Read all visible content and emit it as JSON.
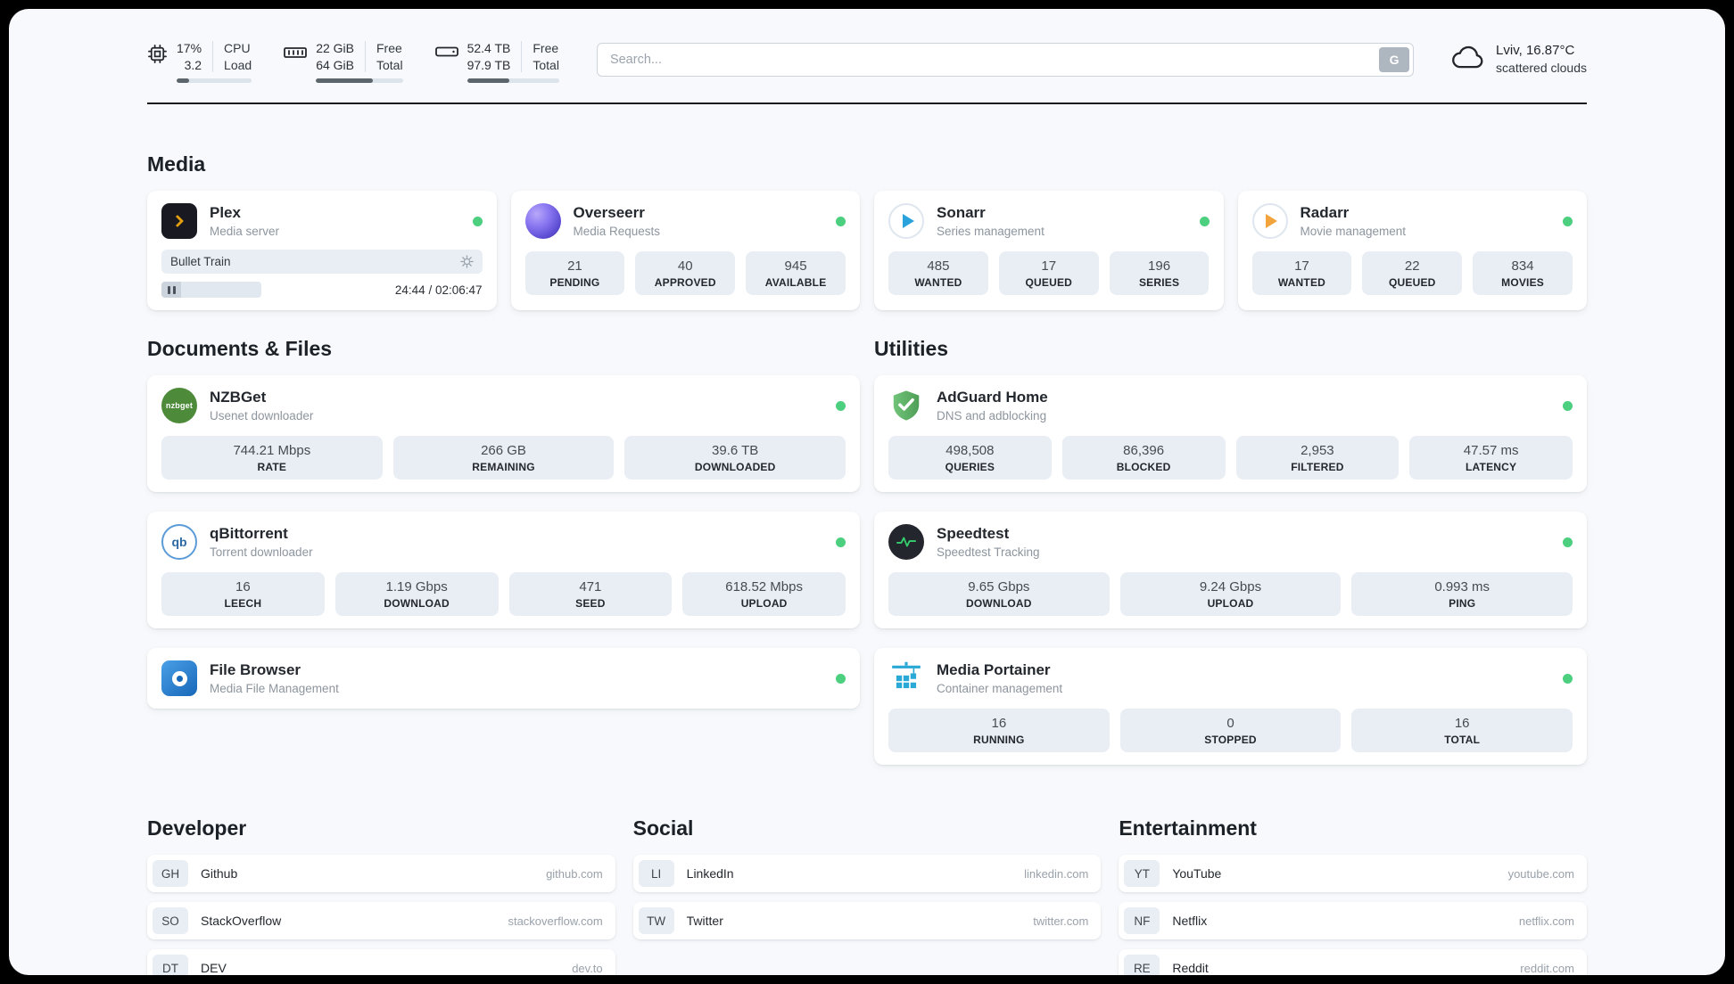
{
  "theme": {
    "status_green": "#4cd07f",
    "plex_accent": "#e5a00d"
  },
  "header": {
    "cpu": {
      "value_top": "17%",
      "value_bottom": "3.2",
      "label_top": "CPU",
      "label_bottom": "Load",
      "bar_percent": "17%"
    },
    "ram": {
      "value_top": "22 GiB",
      "value_bottom": "64 GiB",
      "label_top": "Free",
      "label_bottom": "Total",
      "bar_percent": "66%"
    },
    "disk": {
      "value_top": "52.4 TB",
      "value_bottom": "97.9 TB",
      "label_top": "Free",
      "label_bottom": "Total",
      "bar_percent": "46%"
    },
    "search": {
      "placeholder": "Search...",
      "button_label": "G"
    },
    "weather": {
      "location": "Lviv, 16.87°C",
      "condition": "scattered clouds"
    }
  },
  "sections": {
    "media": "Media",
    "documents": "Documents & Files",
    "utilities": "Utilities",
    "developer": "Developer",
    "social": "Social",
    "entertainment": "Entertainment"
  },
  "apps": {
    "plex": {
      "name": "Plex",
      "subtitle": "Media server",
      "now_playing": "Bullet Train",
      "time": "24:44 / 02:06:47",
      "progress_percent": "20%"
    },
    "overseerr": {
      "name": "Overseerr",
      "subtitle": "Media Requests",
      "stats": [
        {
          "value": "21",
          "label": "PENDING"
        },
        {
          "value": "40",
          "label": "APPROVED"
        },
        {
          "value": "945",
          "label": "AVAILABLE"
        }
      ]
    },
    "sonarr": {
      "name": "Sonarr",
      "subtitle": "Series management",
      "stats": [
        {
          "value": "485",
          "label": "WANTED"
        },
        {
          "value": "17",
          "label": "QUEUED"
        },
        {
          "value": "196",
          "label": "SERIES"
        }
      ]
    },
    "radarr": {
      "name": "Radarr",
      "subtitle": "Movie management",
      "stats": [
        {
          "value": "17",
          "label": "WANTED"
        },
        {
          "value": "22",
          "label": "QUEUED"
        },
        {
          "value": "834",
          "label": "MOVIES"
        }
      ]
    },
    "nzbget": {
      "name": "NZBGet",
      "subtitle": "Usenet downloader",
      "icon_text": "nzbget",
      "stats": [
        {
          "value": "744.21 Mbps",
          "label": "RATE"
        },
        {
          "value": "266 GB",
          "label": "REMAINING"
        },
        {
          "value": "39.6 TB",
          "label": "DOWNLOADED"
        }
      ]
    },
    "qbittorrent": {
      "name": "qBittorrent",
      "subtitle": "Torrent downloader",
      "icon_text": "qb",
      "stats": [
        {
          "value": "16",
          "label": "LEECH"
        },
        {
          "value": "1.19 Gbps",
          "label": "DOWNLOAD"
        },
        {
          "value": "471",
          "label": "SEED"
        },
        {
          "value": "618.52 Mbps",
          "label": "UPLOAD"
        }
      ]
    },
    "filebrowser": {
      "name": "File Browser",
      "subtitle": "Media File Management"
    },
    "adguard": {
      "name": "AdGuard Home",
      "subtitle": "DNS and adblocking",
      "stats": [
        {
          "value": "498,508",
          "label": "QUERIES"
        },
        {
          "value": "86,396",
          "label": "BLOCKED"
        },
        {
          "value": "2,953",
          "label": "FILTERED"
        },
        {
          "value": "47.57 ms",
          "label": "LATENCY"
        }
      ]
    },
    "speedtest": {
      "name": "Speedtest",
      "subtitle": "Speedtest Tracking",
      "stats": [
        {
          "value": "9.65 Gbps",
          "label": "DOWNLOAD"
        },
        {
          "value": "9.24 Gbps",
          "label": "UPLOAD"
        },
        {
          "value": "0.993 ms",
          "label": "PING"
        }
      ]
    },
    "portainer": {
      "name": "Media Portainer",
      "subtitle": "Container management",
      "stats": [
        {
          "value": "16",
          "label": "RUNNING"
        },
        {
          "value": "0",
          "label": "STOPPED"
        },
        {
          "value": "16",
          "label": "TOTAL"
        }
      ]
    }
  },
  "bookmarks": {
    "developer": [
      {
        "abbr": "GH",
        "name": "Github",
        "url": "github.com"
      },
      {
        "abbr": "SO",
        "name": "StackOverflow",
        "url": "stackoverflow.com"
      },
      {
        "abbr": "DT",
        "name": "DEV",
        "url": "dev.to"
      }
    ],
    "social": [
      {
        "abbr": "LI",
        "name": "LinkedIn",
        "url": "linkedin.com"
      },
      {
        "abbr": "TW",
        "name": "Twitter",
        "url": "twitter.com"
      }
    ],
    "entertainment": [
      {
        "abbr": "YT",
        "name": "YouTube",
        "url": "youtube.com"
      },
      {
        "abbr": "NF",
        "name": "Netflix",
        "url": "netflix.com"
      },
      {
        "abbr": "RE",
        "name": "Reddit",
        "url": "reddit.com"
      }
    ]
  }
}
